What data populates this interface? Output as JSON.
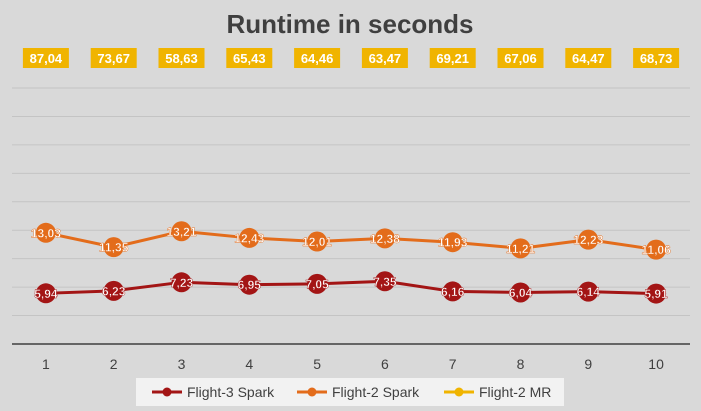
{
  "chart_data": {
    "type": "line",
    "title": "Runtime in seconds",
    "categories": [
      "1",
      "2",
      "3",
      "4",
      "5",
      "6",
      "7",
      "8",
      "9",
      "10"
    ],
    "series": [
      {
        "name": "Flight-3 Spark",
        "color": "#a31515",
        "values": [
          5.94,
          6.23,
          7.23,
          6.95,
          7.05,
          7.35,
          6.16,
          6.04,
          6.14,
          5.91
        ],
        "labels": [
          "5,94",
          "6,23",
          "7,23",
          "6,95",
          "7,05",
          "7,35",
          "6,16",
          "6,04",
          "6,14",
          "5,91"
        ]
      },
      {
        "name": "Flight-2 Spark",
        "color": "#e36c1b",
        "values": [
          13.03,
          11.35,
          13.21,
          12.43,
          12.01,
          12.38,
          11.93,
          11.21,
          12.23,
          11.06
        ],
        "labels": [
          "13,03",
          "11,35",
          "13,21",
          "12,43",
          "12,01",
          "12,38",
          "11,93",
          "11,21",
          "12,23",
          "11,06"
        ]
      },
      {
        "name": "Flight-2 MR",
        "color": "#f0b400",
        "values": [
          87.04,
          73.67,
          58.63,
          65.43,
          64.46,
          63.47,
          69.21,
          67.06,
          64.47,
          68.73
        ],
        "labels": [
          "87,04",
          "73,67",
          "58,63",
          "65,43",
          "64,46",
          "63,47",
          "69,21",
          "67,06",
          "64,47",
          "68,73"
        ]
      }
    ],
    "legend_position": "bottom",
    "grid": true,
    "ylabel": "",
    "xlabel": ""
  }
}
